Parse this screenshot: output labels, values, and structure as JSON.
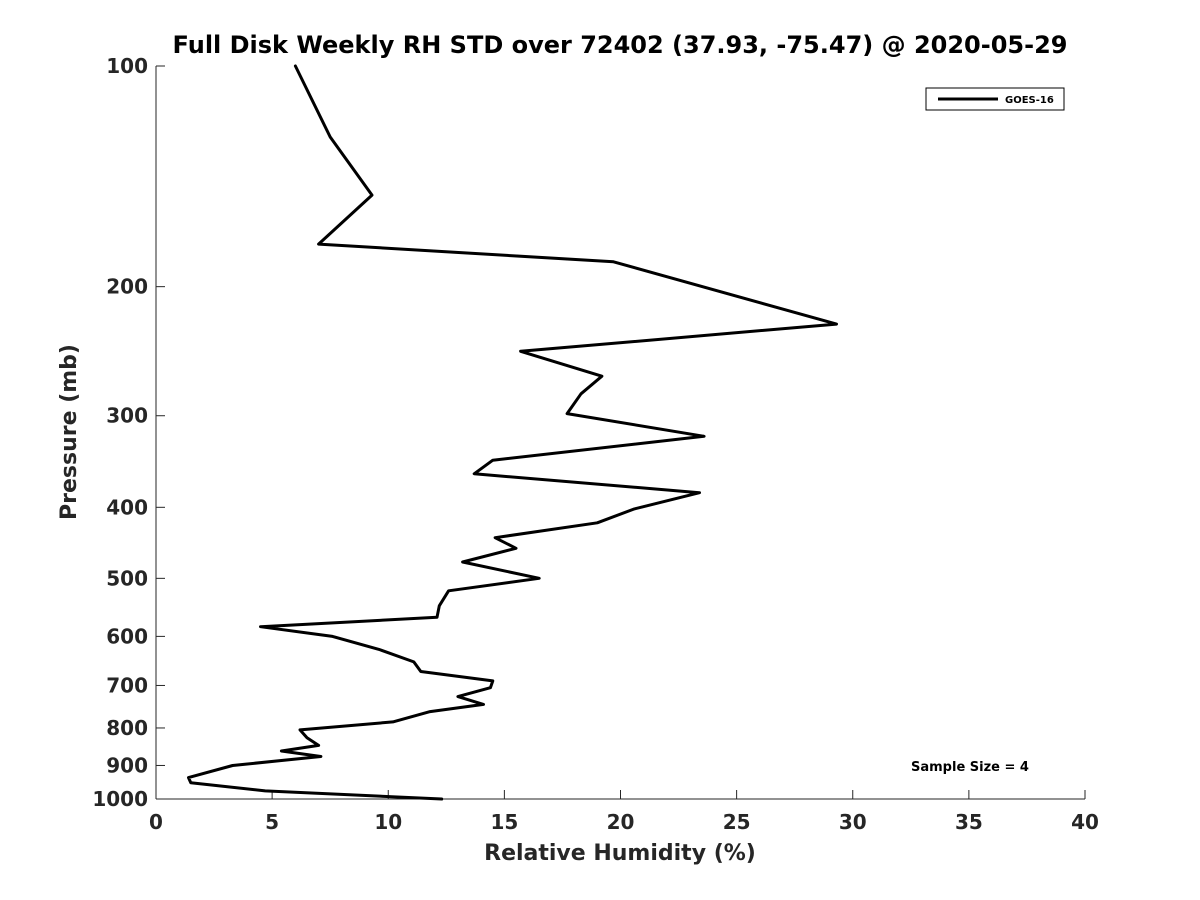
{
  "chart_data": {
    "type": "line",
    "title": "Full Disk Weekly RH STD over 72402 (37.93, -75.47) @ 2020-05-29",
    "xlabel": "Relative Humidity (%)",
    "ylabel": "Pressure (mb)",
    "xlim": [
      0,
      40
    ],
    "ylim": [
      100,
      1000
    ],
    "y_scale": "log",
    "y_reversed": true,
    "x_ticks": [
      "0",
      "5",
      "10",
      "15",
      "20",
      "25",
      "30",
      "35",
      "40"
    ],
    "y_ticks": [
      "100",
      "200",
      "300",
      "400",
      "500",
      "600",
      "700",
      "800",
      "900",
      "1000"
    ],
    "grid": false,
    "legend_position": "top-right",
    "series": [
      {
        "name": "GOES-16",
        "color": "#000000",
        "points": [
          [
            6.0,
            100
          ],
          [
            7.5,
            125
          ],
          [
            9.3,
            150
          ],
          [
            7.0,
            175
          ],
          [
            19.7,
            185
          ],
          [
            29.3,
            225
          ],
          [
            15.7,
            245
          ],
          [
            19.2,
            265
          ],
          [
            18.3,
            280
          ],
          [
            17.7,
            298
          ],
          [
            23.6,
            320
          ],
          [
            14.5,
            345
          ],
          [
            13.7,
            360
          ],
          [
            23.4,
            382
          ],
          [
            20.6,
            402
          ],
          [
            19.0,
            420
          ],
          [
            14.6,
            440
          ],
          [
            15.5,
            455
          ],
          [
            13.2,
            475
          ],
          [
            16.5,
            500
          ],
          [
            12.6,
            520
          ],
          [
            12.2,
            545
          ],
          [
            12.1,
            565
          ],
          [
            4.5,
            582
          ],
          [
            7.6,
            600
          ],
          [
            9.6,
            625
          ],
          [
            11.1,
            650
          ],
          [
            11.4,
            670
          ],
          [
            14.5,
            690
          ],
          [
            14.4,
            705
          ],
          [
            13.0,
            725
          ],
          [
            14.1,
            743
          ],
          [
            11.8,
            760
          ],
          [
            10.2,
            785
          ],
          [
            6.2,
            805
          ],
          [
            6.5,
            825
          ],
          [
            7.0,
            845
          ],
          [
            5.4,
            860
          ],
          [
            7.1,
            875
          ],
          [
            3.3,
            900
          ],
          [
            1.4,
            935
          ],
          [
            1.5,
            950
          ],
          [
            4.7,
            975
          ],
          [
            12.3,
            1000
          ]
        ]
      }
    ],
    "annotations": [
      "Sample Size = 4"
    ]
  }
}
